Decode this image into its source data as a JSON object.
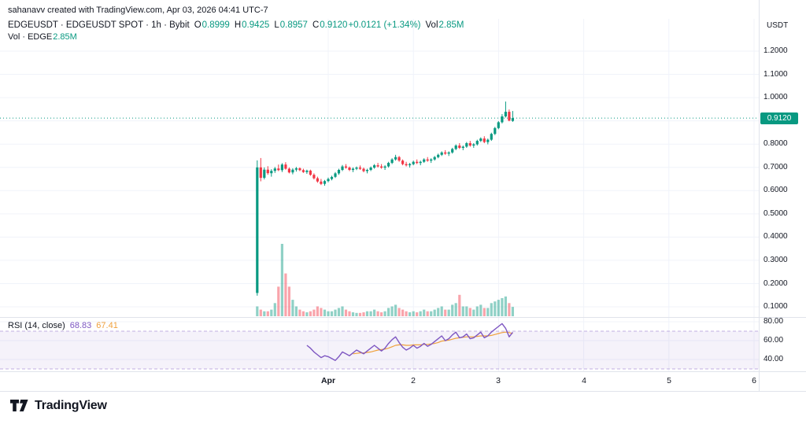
{
  "attribution": "sahanavv created with TradingView.com, Apr 03, 2026 04:41 UTC-7",
  "header": {
    "symbol_line": "EDGEUSDT · EDGEUSDT SPOT · 1h · Bybit",
    "ohlc": {
      "o_label": "O",
      "o": "0.8999",
      "h_label": "H",
      "h": "0.9425",
      "l_label": "L",
      "l": "0.8957",
      "c_label": "C",
      "c": "0.9120",
      "change": "+0.0121 (+1.34%)",
      "vol_label": "Vol",
      "vol": "2.85M"
    },
    "volume_line": {
      "label": "Vol · EDGE",
      "value": "2.85M"
    }
  },
  "rsi_header": {
    "label": "RSI (14, close)",
    "value": "68.83",
    "ma_value": "67.41"
  },
  "price_axis": {
    "unit": "USDT",
    "labels": [
      "1.2000",
      "1.1000",
      "1.0000",
      "0.8000",
      "0.7000",
      "0.6000",
      "0.5000",
      "0.4000",
      "0.3000",
      "0.2000",
      "0.1000"
    ],
    "current_price": "0.9120"
  },
  "rsi_axis": {
    "labels": [
      "80.00",
      "60.00",
      "40.00"
    ]
  },
  "time_axis": {
    "labels": [
      "Apr",
      "2",
      "3",
      "4",
      "5",
      "6"
    ]
  },
  "logo": {
    "text": "TradingView"
  },
  "colors": {
    "up": "#089981",
    "down": "#f23645",
    "vol_up": "rgba(8,153,129,0.45)",
    "vol_down": "rgba(242,54,69,0.45)",
    "grid": "#f0f3fa",
    "separator": "#e0e3eb",
    "rsi_line": "#7e57c2",
    "rsi_ma_line": "#f0a13c",
    "rsi_band_fill": "rgba(126,87,194,0.08)",
    "rsi_band_line": "rgba(126,87,194,0.45)",
    "badge_bg": "#089981",
    "text": "#131722"
  },
  "chart_data": {
    "type": "candlestick",
    "title": "EDGEUSDT · EDGEUSDT SPOT · 1h · Bybit",
    "symbol": "EDGEUSDT",
    "interval": "1h",
    "exchange": "Bybit",
    "legend_position": "top-left",
    "grid": true,
    "price_ticks": [
      1.2,
      1.1,
      1.0,
      0.9,
      0.8,
      0.7,
      0.6,
      0.5,
      0.4,
      0.3,
      0.2,
      0.1
    ],
    "ylim": [
      0.05,
      1.25
    ],
    "current_price": 0.912,
    "current_ohlc": {
      "open": 0.8999,
      "high": 0.9425,
      "low": 0.8957,
      "close": 0.912,
      "volume_m": 2.85
    },
    "candles": [
      [
        0.16,
        0.73,
        0.148,
        0.7
      ],
      [
        0.7,
        0.74,
        0.64,
        0.655
      ],
      [
        0.655,
        0.7,
        0.648,
        0.69
      ],
      [
        0.69,
        0.705,
        0.668,
        0.675
      ],
      [
        0.675,
        0.692,
        0.66,
        0.685
      ],
      [
        0.685,
        0.702,
        0.676,
        0.695
      ],
      [
        0.695,
        0.712,
        0.684,
        0.688
      ],
      [
        0.688,
        0.718,
        0.68,
        0.712
      ],
      [
        0.712,
        0.722,
        0.69,
        0.694
      ],
      [
        0.694,
        0.7,
        0.674,
        0.678
      ],
      [
        0.678,
        0.696,
        0.67,
        0.69
      ],
      [
        0.69,
        0.702,
        0.682,
        0.696
      ],
      [
        0.696,
        0.7,
        0.684,
        0.688
      ],
      [
        0.688,
        0.694,
        0.676,
        0.68
      ],
      [
        0.68,
        0.69,
        0.672,
        0.686
      ],
      [
        0.686,
        0.69,
        0.664,
        0.668
      ],
      [
        0.668,
        0.674,
        0.648,
        0.653
      ],
      [
        0.653,
        0.66,
        0.634,
        0.639
      ],
      [
        0.639,
        0.65,
        0.624,
        0.629
      ],
      [
        0.629,
        0.646,
        0.621,
        0.641
      ],
      [
        0.641,
        0.656,
        0.636,
        0.65
      ],
      [
        0.65,
        0.664,
        0.644,
        0.659
      ],
      [
        0.659,
        0.68,
        0.654,
        0.674
      ],
      [
        0.674,
        0.694,
        0.668,
        0.689
      ],
      [
        0.689,
        0.71,
        0.684,
        0.704
      ],
      [
        0.704,
        0.714,
        0.694,
        0.699
      ],
      [
        0.699,
        0.704,
        0.684,
        0.689
      ],
      [
        0.689,
        0.7,
        0.68,
        0.694
      ],
      [
        0.694,
        0.704,
        0.688,
        0.699
      ],
      [
        0.699,
        0.708,
        0.689,
        0.694
      ],
      [
        0.694,
        0.699,
        0.679,
        0.684
      ],
      [
        0.684,
        0.694,
        0.674,
        0.689
      ],
      [
        0.689,
        0.704,
        0.684,
        0.699
      ],
      [
        0.699,
        0.714,
        0.694,
        0.709
      ],
      [
        0.709,
        0.719,
        0.699,
        0.704
      ],
      [
        0.704,
        0.714,
        0.694,
        0.699
      ],
      [
        0.699,
        0.709,
        0.689,
        0.704
      ],
      [
        0.704,
        0.724,
        0.699,
        0.719
      ],
      [
        0.719,
        0.739,
        0.714,
        0.734
      ],
      [
        0.734,
        0.754,
        0.729,
        0.744
      ],
      [
        0.744,
        0.749,
        0.724,
        0.729
      ],
      [
        0.729,
        0.734,
        0.709,
        0.714
      ],
      [
        0.714,
        0.724,
        0.704,
        0.709
      ],
      [
        0.709,
        0.719,
        0.699,
        0.714
      ],
      [
        0.714,
        0.729,
        0.709,
        0.724
      ],
      [
        0.724,
        0.734,
        0.714,
        0.719
      ],
      [
        0.719,
        0.729,
        0.709,
        0.724
      ],
      [
        0.724,
        0.739,
        0.719,
        0.734
      ],
      [
        0.734,
        0.744,
        0.724,
        0.729
      ],
      [
        0.729,
        0.739,
        0.719,
        0.734
      ],
      [
        0.734,
        0.749,
        0.729,
        0.744
      ],
      [
        0.744,
        0.759,
        0.739,
        0.754
      ],
      [
        0.754,
        0.769,
        0.749,
        0.764
      ],
      [
        0.764,
        0.774,
        0.754,
        0.759
      ],
      [
        0.759,
        0.769,
        0.749,
        0.764
      ],
      [
        0.764,
        0.784,
        0.759,
        0.779
      ],
      [
        0.779,
        0.799,
        0.774,
        0.794
      ],
      [
        0.794,
        0.804,
        0.779,
        0.784
      ],
      [
        0.784,
        0.794,
        0.774,
        0.789
      ],
      [
        0.789,
        0.809,
        0.784,
        0.804
      ],
      [
        0.804,
        0.814,
        0.789,
        0.794
      ],
      [
        0.794,
        0.804,
        0.784,
        0.799
      ],
      [
        0.799,
        0.819,
        0.794,
        0.814
      ],
      [
        0.814,
        0.829,
        0.809,
        0.824
      ],
      [
        0.824,
        0.834,
        0.804,
        0.809
      ],
      [
        0.809,
        0.824,
        0.799,
        0.819
      ],
      [
        0.819,
        0.849,
        0.814,
        0.844
      ],
      [
        0.844,
        0.874,
        0.839,
        0.869
      ],
      [
        0.869,
        0.899,
        0.864,
        0.894
      ],
      [
        0.894,
        0.929,
        0.889,
        0.919
      ],
      [
        0.919,
        0.983,
        0.914,
        0.939
      ],
      [
        0.939,
        0.949,
        0.898,
        0.901
      ],
      [
        0.8999,
        0.9425,
        0.8957,
        0.912
      ]
    ],
    "volumes_m": [
      3,
      2,
      1.5,
      1.5,
      2,
      4,
      9,
      22,
      13,
      9,
      5,
      3,
      2,
      1.5,
      1.2,
      1.5,
      2,
      3,
      2.5,
      2,
      1.5,
      1.5,
      2,
      2.5,
      3,
      2,
      1.5,
      1.2,
      1,
      1,
      1.2,
      1.5,
      1.5,
      2,
      1.5,
      1.2,
      1.5,
      2.5,
      3,
      3.5,
      2.5,
      2,
      1.5,
      1.2,
      1.5,
      1.2,
      1.5,
      2,
      1.5,
      1.5,
      2,
      2.5,
      3,
      2,
      2,
      3.5,
      4,
      6.5,
      3,
      3,
      2.5,
      2,
      3,
      3.5,
      2.5,
      2.5,
      4,
      4.5,
      5,
      5.5,
      6,
      4,
      2.85
    ],
    "rsi": {
      "period": 14,
      "start_index": 14,
      "current": 68.83,
      "values": [
        55,
        52,
        48,
        45,
        42,
        44,
        43,
        41,
        39,
        43,
        48,
        46,
        44,
        47,
        50,
        48,
        46,
        49,
        52,
        55,
        52,
        49,
        52,
        57,
        61,
        64,
        58,
        53,
        50,
        52,
        55,
        52,
        54,
        57,
        54,
        56,
        59,
        62,
        65,
        60,
        62,
        66,
        69,
        63,
        64,
        67,
        62,
        63,
        66,
        69,
        63,
        65,
        69,
        72,
        75,
        78,
        73,
        64,
        68.83
      ]
    },
    "rsi_ma": {
      "start_index": 27,
      "current": 67.41,
      "values": [
        46,
        46.5,
        47,
        47,
        47.5,
        48,
        49,
        50,
        50.5,
        51,
        52,
        53.5,
        55,
        55.5,
        55.5,
        55,
        55,
        55.5,
        55.5,
        55.5,
        56,
        56,
        56.5,
        57,
        58,
        59.5,
        60,
        60.5,
        61.5,
        62.5,
        63,
        63.5,
        64,
        64,
        64,
        64.5,
        65,
        65,
        65,
        65.5,
        66.5,
        67.5,
        68.5,
        69,
        68.5,
        67.41
      ]
    },
    "rsi_grid": [
      80,
      60,
      40
    ],
    "rsi_bands": [
      70,
      30
    ],
    "time_axis_days": [
      "Apr",
      "2",
      "3",
      "4",
      "5",
      "6"
    ]
  }
}
